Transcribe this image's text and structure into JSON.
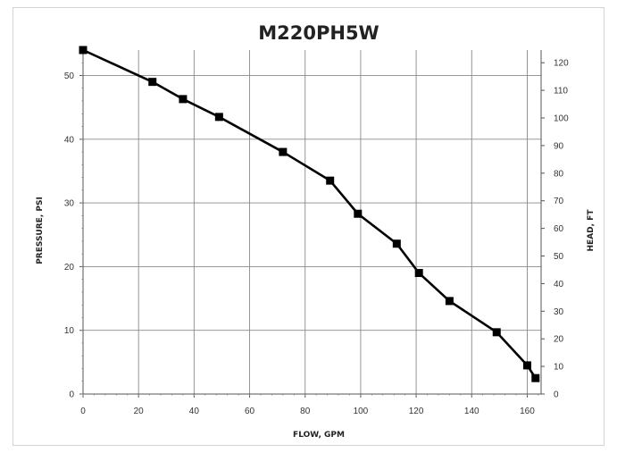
{
  "chart_data": {
    "type": "line",
    "title": "M220PH5W",
    "xlabel": "FLOW, GPM",
    "ylabel": "PRESSURE, PSI",
    "y2label": "HEAD, FT",
    "xlim": [
      0,
      165
    ],
    "ylim": [
      0,
      54
    ],
    "y2lim": [
      0,
      124.6
    ],
    "xticks": [
      0,
      20,
      40,
      60,
      80,
      100,
      120,
      140,
      160
    ],
    "yticks": [
      0,
      10,
      20,
      30,
      40,
      50
    ],
    "y2ticks": [
      0,
      10,
      20,
      30,
      40,
      50,
      60,
      70,
      80,
      90,
      100,
      110,
      120
    ],
    "grid": true,
    "series": [
      {
        "color": "#000000",
        "x": [
          0,
          25,
          36,
          49,
          72,
          89,
          99,
          113,
          121,
          132,
          149,
          160,
          163
        ],
        "y": [
          54,
          49,
          46.3,
          43.5,
          38,
          33.5,
          28.3,
          23.6,
          19,
          14.6,
          9.7,
          4.5,
          2.5
        ]
      }
    ]
  }
}
